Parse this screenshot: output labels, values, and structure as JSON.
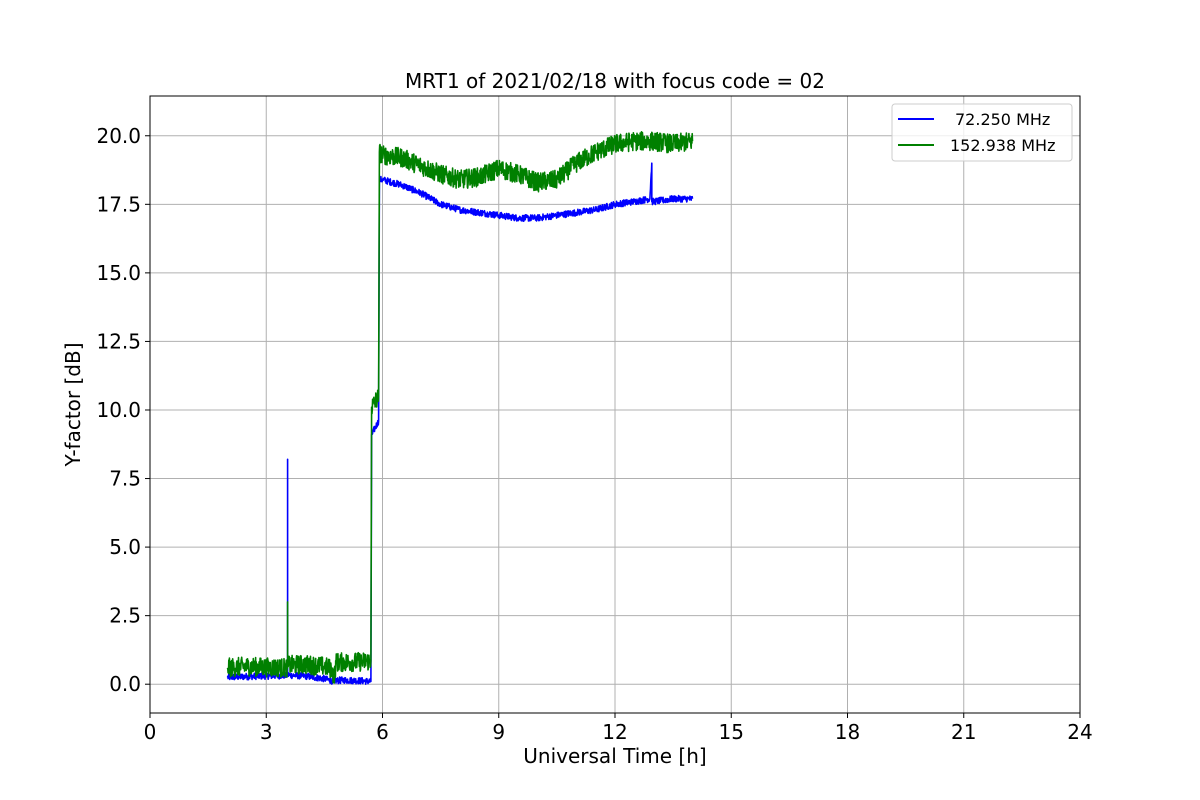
{
  "chart_data": {
    "type": "line",
    "title": "MRT1 of 2021/02/18 with focus code = 02",
    "xlabel": "Universal Time [h]",
    "ylabel": "Y-factor [dB]",
    "xlim": [
      0,
      24
    ],
    "ylim": [
      -1.05,
      21.45
    ],
    "xticks": [
      0,
      3,
      6,
      9,
      12,
      15,
      18,
      21,
      24
    ],
    "xtick_labels": [
      "0",
      "3",
      "6",
      "9",
      "12",
      "15",
      "18",
      "21",
      "24"
    ],
    "yticks": [
      0.0,
      2.5,
      5.0,
      7.5,
      10.0,
      12.5,
      15.0,
      17.5,
      20.0
    ],
    "ytick_labels": [
      "0.0",
      "2.5",
      "5.0",
      "7.5",
      "10.0",
      "12.5",
      "15.0",
      "17.5",
      "20.0"
    ],
    "grid": true,
    "legend_position": "top-right",
    "series": [
      {
        "name": "72.250 MHz",
        "color": "#0000ff",
        "noise": 0.12,
        "x": [
          2.0,
          2.5,
          3.0,
          3.5,
          3.55,
          3.55,
          3.55,
          3.6,
          4.0,
          4.5,
          4.7,
          5.0,
          5.5,
          5.7,
          5.72,
          5.9,
          5.92,
          6.0,
          6.5,
          7.0,
          7.5,
          8.0,
          8.5,
          9.0,
          9.5,
          10.0,
          10.5,
          11.0,
          11.5,
          12.0,
          12.5,
          12.9,
          12.95,
          12.95,
          13.0,
          13.5,
          14.0
        ],
        "y": [
          0.25,
          0.28,
          0.3,
          0.32,
          0.32,
          8.2,
          0.35,
          0.33,
          0.3,
          0.2,
          0.12,
          0.15,
          0.12,
          0.1,
          9.1,
          9.6,
          18.4,
          18.4,
          18.2,
          17.9,
          17.5,
          17.3,
          17.2,
          17.1,
          17.0,
          17.0,
          17.1,
          17.2,
          17.3,
          17.5,
          17.6,
          17.7,
          19.0,
          17.6,
          17.6,
          17.7,
          17.7
        ]
      },
      {
        "name": "152.938 MHz",
        "color": "#008000",
        "noise": 0.35,
        "x": [
          2.0,
          2.5,
          3.0,
          3.5,
          3.55,
          3.55,
          3.55,
          3.6,
          4.0,
          4.5,
          4.7,
          4.75,
          4.8,
          5.0,
          5.5,
          5.7,
          5.72,
          5.9,
          5.92,
          6.0,
          6.5,
          7.0,
          7.5,
          8.0,
          8.5,
          9.0,
          9.5,
          10.0,
          10.5,
          11.0,
          11.5,
          12.0,
          12.5,
          13.0,
          13.5,
          14.0
        ],
        "y": [
          0.6,
          0.65,
          0.62,
          0.6,
          0.6,
          3.0,
          0.7,
          0.7,
          0.72,
          0.65,
          0.55,
          0.2,
          0.8,
          0.8,
          0.82,
          0.85,
          10.1,
          10.5,
          19.4,
          19.3,
          19.2,
          18.9,
          18.6,
          18.4,
          18.5,
          18.8,
          18.6,
          18.3,
          18.4,
          19.0,
          19.4,
          19.7,
          19.8,
          19.8,
          19.7,
          19.8
        ]
      }
    ]
  }
}
